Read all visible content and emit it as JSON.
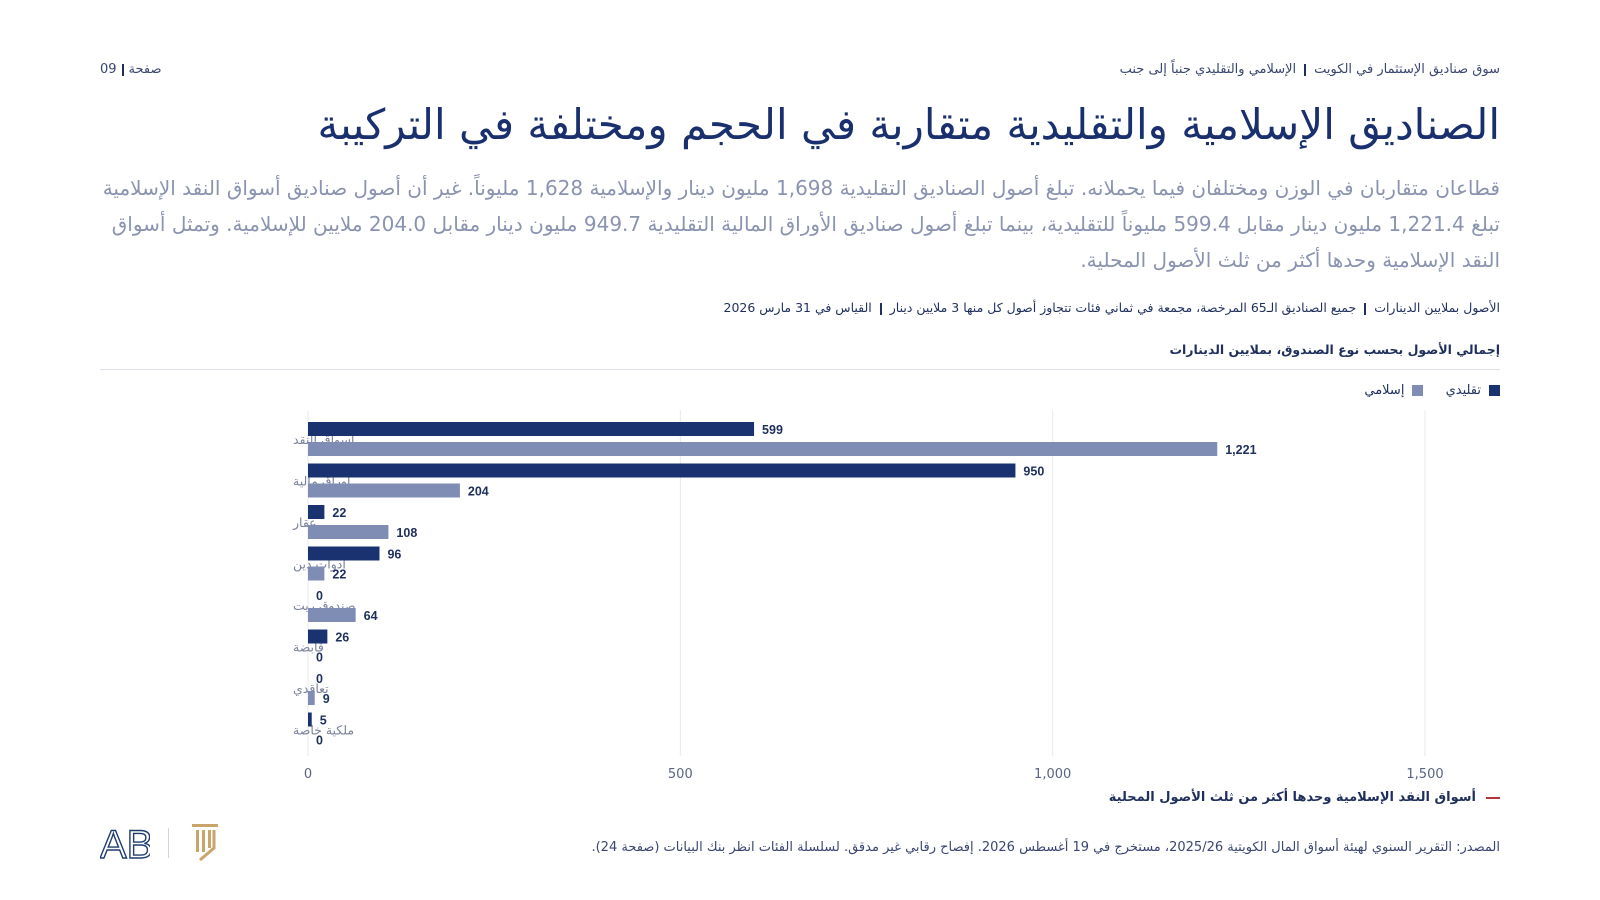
{
  "header": {
    "section": "سوق صناديق الإستثمار في الكويت",
    "topic": "الإسلامي والتقليدي جنباً إلى جنب",
    "page_label": "صفحة",
    "page_number": "09"
  },
  "title": "الصناديق الإسلامية والتقليدية متقاربة في الحجم ومختلفة في التركيبة",
  "subtitle": "قطاعان متقاربان في الوزن ومختلفان فيما يحملانه. تبلغ أصول الصناديق التقليدية 1,698 مليون دينار والإسلامية 1,628 مليوناً. غير أن أصول صناديق أسواق النقد الإسلامية تبلغ 1,221.4 مليون دينار مقابل 599.4 مليوناً للتقليدية، بينما تبلغ أصول صناديق الأوراق المالية التقليدية 949.7 مليون دينار مقابل 204.0 ملايين للإسلامية. وتمثل أسواق النقد الإسلامية وحدها أكثر من ثلث الأصول المحلية.",
  "meta": {
    "units": "الأصول بملايين الدينارات",
    "scope": "جميع الصناديق الـ65 المرخصة، مجمعة في ثماني فئات تتجاوز أصول كل منها 3 ملايين دينار",
    "date": "القياس في 31 مارس 2026"
  },
  "chart_title": "إجمالي الأصول بحسب نوع الصندوق، بملايين الدينارات",
  "note": "أسواق النقد الإسلامية وحدها أكثر من ثلث الأصول المحلية",
  "source": "المصدر: التقرير السنوي لهيئة أسواق المال الكويتية 2025/26، مستخرج في 19 أغسطس 2026. إفصاح رقابي غير مدقق. لسلسلة الفئات انظر بنك البيانات (صفحة 24).",
  "colors": {
    "conventional": "#1a3370",
    "islamic": "#7f8db5",
    "grid": "#e6e8ee",
    "accent": "#b8333a",
    "gold": "#c9a56a"
  },
  "logo": {
    "text": "AB",
    "icon": "column-logo-icon"
  },
  "chart_data": {
    "type": "bar",
    "orientation": "horizontal",
    "categories": [
      "أسواق النقد",
      "أوراق مالية",
      "عقار",
      "أدوات دين",
      "صندوق ريت",
      "قابضة",
      "تعاقدي",
      "ملكية خاصة"
    ],
    "series": [
      {
        "name": "تقليدي",
        "values": [
          599,
          950,
          22,
          96,
          0,
          26,
          0,
          5
        ]
      },
      {
        "name": "إسلامي",
        "values": [
          1221,
          204,
          108,
          22,
          64,
          0,
          9,
          0
        ]
      }
    ],
    "xlim": [
      0,
      1500
    ],
    "xticks": [
      0,
      500,
      1000,
      1500
    ],
    "xtick_labels": [
      "0",
      "500",
      "1,000",
      "1,500"
    ],
    "legend": "top-right",
    "grid": true
  }
}
